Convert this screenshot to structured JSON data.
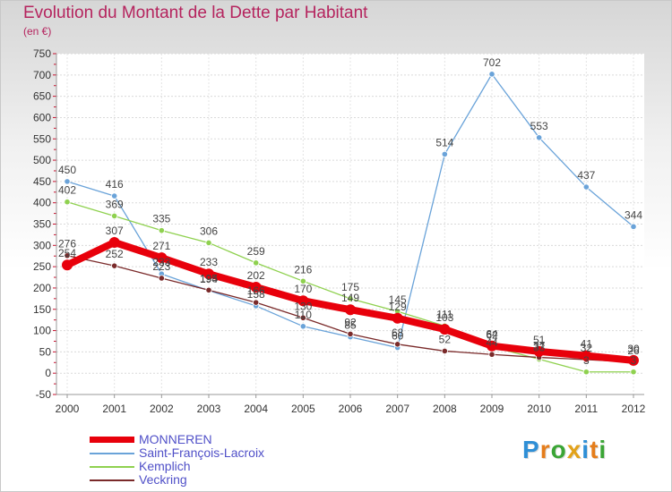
{
  "title": "Evolution du Montant de la Dette par Habitant",
  "subtitle": "(en €)",
  "logo": {
    "text": "Proxiti",
    "letters": [
      {
        "ch": "P",
        "color": "#2f8fd6"
      },
      {
        "ch": "r",
        "color": "#e57d1b"
      },
      {
        "ch": "o",
        "color": "#3aa535"
      },
      {
        "ch": "x",
        "color": "#e2a21a"
      },
      {
        "ch": "i",
        "color": "#2f8fd6"
      },
      {
        "ch": "t",
        "color": "#e57d1b"
      },
      {
        "ch": "i",
        "color": "#3aa535"
      }
    ]
  },
  "chart_data": {
    "type": "line",
    "x": [
      "2000",
      "2001",
      "2002",
      "2003",
      "2004",
      "2005",
      "2006",
      "2007",
      "2008",
      "2009",
      "2010",
      "2011",
      "2012"
    ],
    "ylim": [
      -50,
      750
    ],
    "yticks": [
      "-50",
      "0",
      "50",
      "100",
      "150",
      "200",
      "250",
      "300",
      "350",
      "400",
      "450",
      "500",
      "550",
      "600",
      "650",
      "700",
      "750"
    ],
    "grid": true,
    "legend_position": "bottom-left",
    "series": [
      {
        "name": "MONNEREN",
        "color": "#e8000b",
        "values": [
          254,
          307,
          271,
          233,
          202,
          170,
          149,
          129,
          103,
          64,
          51,
          41,
          30
        ],
        "labels": [
          "254",
          "307",
          "271",
          "233",
          "202",
          "170",
          "149",
          "129",
          "103",
          "64",
          "51",
          "41",
          "30"
        ]
      },
      {
        "name": "Saint-François-Lacroix",
        "color": "#6aa3d9",
        "values": [
          450,
          416,
          233,
          194,
          158,
          110,
          85,
          60,
          514,
          702,
          553,
          437,
          344
        ],
        "labels": [
          "450",
          "416",
          "233",
          "194",
          "158",
          "110",
          "85",
          "60",
          "514",
          "702",
          "553",
          "437",
          "344"
        ]
      },
      {
        "name": "Kemplich",
        "color": "#8fd14f",
        "values": [
          402,
          369,
          335,
          306,
          259,
          216,
          175,
          145,
          111,
          62,
          33,
          3,
          3
        ],
        "labels": [
          "402",
          "369",
          "335",
          "306",
          "259",
          "216",
          "175",
          "145",
          "111",
          "62",
          "33",
          "3",
          "3"
        ]
      },
      {
        "name": "Veckring",
        "color": "#7a2a2a",
        "values": [
          276,
          252,
          223,
          195,
          166,
          130,
          92,
          68,
          52,
          44,
          37,
          32,
          26
        ],
        "labels": [
          "276",
          "252",
          "223",
          "195",
          "166",
          "130",
          "92",
          "68",
          "52",
          "44",
          "37",
          "32",
          "26"
        ]
      }
    ]
  }
}
